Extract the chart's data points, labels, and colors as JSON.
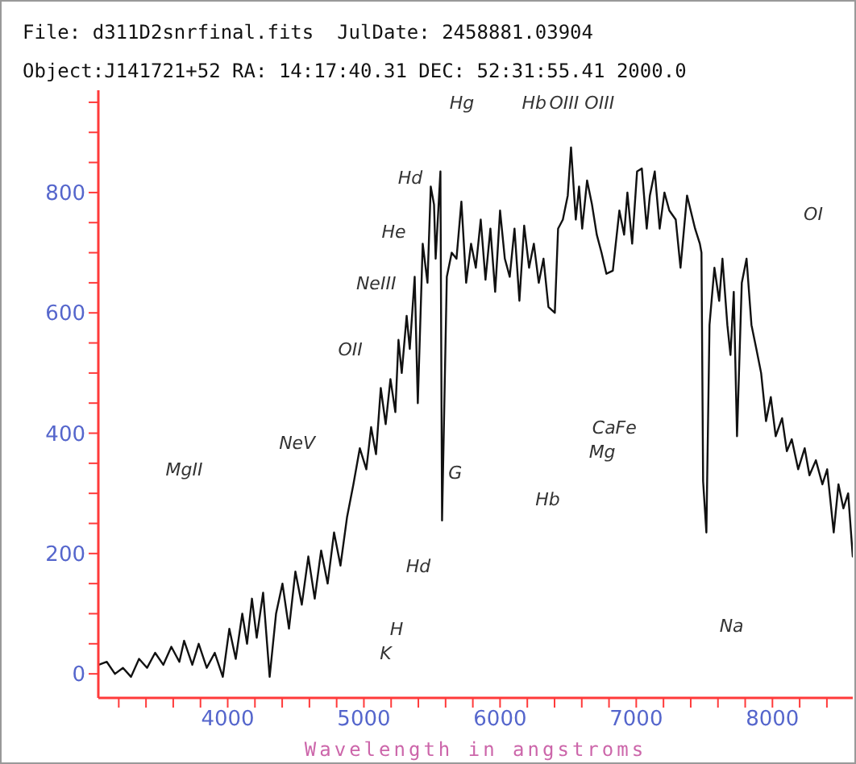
{
  "chart_data": {
    "type": "line",
    "title": "File: d311D2snrfinal.fits  JulDate: 2458881.03904",
    "subtitle": "Object:J141721+52 RA: 14:17:40.31 DEC: 52:31:55.41 2000.0",
    "xlabel": "Wavelength in angstroms",
    "x": [
      3053,
      3112,
      3172,
      3231,
      3290,
      3349,
      3408,
      3467,
      3527,
      3586,
      3645,
      3680,
      3740,
      3787,
      3846,
      3905,
      3964,
      4012,
      4059,
      4107,
      4142,
      4178,
      4213,
      4260,
      4308,
      4355,
      4402,
      4450,
      4497,
      4544,
      4592,
      4639,
      4686,
      4734,
      4781,
      4828,
      4876,
      4923,
      4970,
      5018,
      5053,
      5089,
      5124,
      5160,
      5195,
      5231,
      5254,
      5278,
      5314,
      5337,
      5373,
      5396,
      5432,
      5467,
      5491,
      5515,
      5527,
      5562,
      5574,
      5609,
      5645,
      5680,
      5716,
      5751,
      5787,
      5822,
      5858,
      5893,
      5929,
      5964,
      6000,
      6035,
      6071,
      6106,
      6142,
      6177,
      6213,
      6248,
      6284,
      6319,
      6355,
      6402,
      6426,
      6461,
      6497,
      6521,
      6556,
      6580,
      6603,
      6639,
      6675,
      6710,
      6745,
      6781,
      6828,
      6876,
      6911,
      6935,
      6970,
      7006,
      7041,
      7077,
      7100,
      7136,
      7172,
      7207,
      7243,
      7290,
      7325,
      7373,
      7432,
      7467,
      7479,
      7491,
      7515,
      7538,
      7574,
      7609,
      7633,
      7669,
      7692,
      7716,
      7740,
      7775,
      7810,
      7846,
      7882,
      7917,
      7953,
      7988,
      8024,
      8071,
      8106,
      8142,
      8189,
      8237,
      8272,
      8319,
      8367,
      8402,
      8450,
      8485,
      8521,
      8556,
      8590
    ],
    "series": [
      {
        "color": "#111111",
        "values": [
          15,
          20,
          0,
          10,
          -5,
          25,
          10,
          35,
          15,
          45,
          20,
          55,
          15,
          50,
          10,
          35,
          -5,
          75,
          25,
          100,
          50,
          125,
          60,
          135,
          -5,
          100,
          150,
          75,
          170,
          115,
          195,
          125,
          205,
          150,
          235,
          180,
          260,
          315,
          375,
          340,
          410,
          365,
          475,
          415,
          490,
          435,
          555,
          500,
          595,
          540,
          660,
          450,
          715,
          650,
          810,
          780,
          690,
          835,
          255,
          660,
          700,
          690,
          785,
          650,
          715,
          675,
          755,
          655,
          740,
          635,
          770,
          690,
          660,
          740,
          620,
          745,
          675,
          715,
          650,
          690,
          610,
          600,
          740,
          755,
          795,
          875,
          755,
          810,
          740,
          820,
          780,
          730,
          700,
          665,
          670,
          770,
          730,
          800,
          715,
          835,
          840,
          740,
          795,
          835,
          740,
          800,
          770,
          755,
          675,
          795,
          740,
          715,
          700,
          320,
          235,
          580,
          675,
          620,
          690,
          580,
          530,
          635,
          395,
          650,
          690,
          580,
          540,
          500,
          420,
          460,
          395,
          425,
          370,
          390,
          340,
          375,
          330,
          355,
          315,
          340,
          235,
          315,
          275,
          300,
          195
        ]
      }
    ],
    "xlim": [
      3050,
      8590
    ],
    "ylim": [
      -40,
      970
    ],
    "xticks": [
      {
        "value": 3200,
        "label": null
      },
      {
        "value": 3400,
        "label": null
      },
      {
        "value": 3600,
        "label": null
      },
      {
        "value": 3800,
        "label": null
      },
      4000,
      {
        "value": 4200,
        "label": null
      },
      {
        "value": 4400,
        "label": null
      },
      {
        "value": 4600,
        "label": null
      },
      {
        "value": 4800,
        "label": null
      },
      5000,
      {
        "value": 5200,
        "label": null
      },
      {
        "value": 5400,
        "label": null
      },
      {
        "value": 5600,
        "label": null
      },
      {
        "value": 5800,
        "label": null
      },
      6000,
      {
        "value": 6200,
        "label": null
      },
      {
        "value": 6400,
        "label": null
      },
      {
        "value": 6600,
        "label": null
      },
      {
        "value": 6800,
        "label": null
      },
      7000,
      {
        "value": 7200,
        "label": null
      },
      {
        "value": 7400,
        "label": null
      },
      {
        "value": 7600,
        "label": null
      },
      {
        "value": 7800,
        "label": null
      },
      8000,
      {
        "value": 8200,
        "label": null
      },
      {
        "value": 8400,
        "label": null
      }
    ],
    "yticks": [
      0,
      {
        "value": 50,
        "label": null
      },
      {
        "value": 100,
        "label": null
      },
      {
        "value": 150,
        "label": null
      },
      200,
      {
        "value": 250,
        "label": null
      },
      {
        "value": 300,
        "label": null
      },
      {
        "value": 350,
        "label": null
      },
      400,
      {
        "value": 450,
        "label": null
      },
      {
        "value": 500,
        "label": null
      },
      {
        "value": 550,
        "label": null
      },
      600,
      {
        "value": 650,
        "label": null
      },
      {
        "value": 700,
        "label": null
      },
      {
        "value": 750,
        "label": null
      },
      800,
      {
        "value": 850,
        "label": null
      },
      {
        "value": 900,
        "label": null
      },
      {
        "value": 950,
        "label": null
      }
    ],
    "grid": false,
    "legend": false,
    "marker": "none",
    "line_style": "solid",
    "annotations": [
      "MgII",
      "NeV",
      "OII",
      "NeIII",
      "He",
      "Hd",
      "Hg",
      "Hb",
      "OIII",
      "OIII",
      "OI",
      "G",
      "Hd",
      "H",
      "K",
      "Hb",
      "CaFe",
      "Mg",
      "Na"
    ]
  }
}
